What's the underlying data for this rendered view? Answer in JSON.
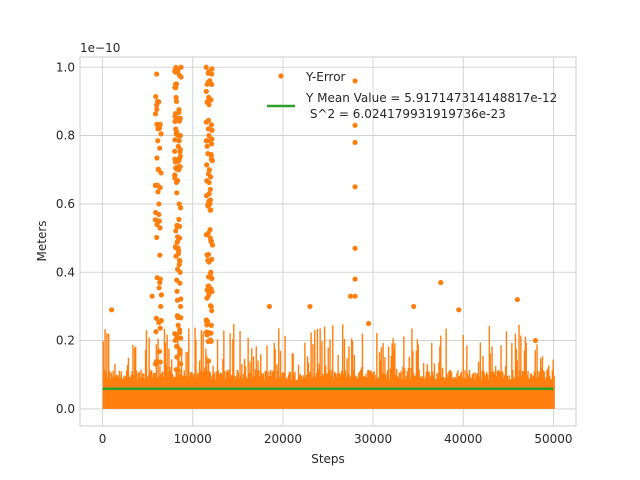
{
  "chart_data": {
    "type": "scatter",
    "xlabel": "Steps",
    "ylabel": "Meters",
    "y_scale_label": "1e−10",
    "xlim": [
      -2500,
      52500
    ],
    "ylim": [
      -0.05,
      1.03
    ],
    "y_unit_scale": 1e-10,
    "x_ticks": [
      0,
      10000,
      20000,
      30000,
      40000,
      50000
    ],
    "x_tick_labels": [
      "0",
      "10000",
      "20000",
      "30000",
      "40000",
      "50000"
    ],
    "y_ticks": [
      0.0,
      0.2,
      0.4,
      0.6,
      0.8,
      1.0
    ],
    "y_tick_labels": [
      "0.0",
      "0.2",
      "0.4",
      "0.6",
      "0.8",
      "1.0"
    ],
    "grid": true,
    "legend_position": "top-right",
    "colors": {
      "error": "#ff7f0e",
      "mean": "#2ca02c",
      "grid": "#cccccc"
    },
    "series": [
      {
        "name": "Y-Error",
        "kind": "scatter",
        "approximate_points": [
          [
            6000,
            0.98
          ],
          [
            6100,
            0.9
          ],
          [
            6150,
            0.82
          ],
          [
            6200,
            0.7
          ],
          [
            6250,
            0.6
          ],
          [
            6300,
            0.55
          ],
          [
            6350,
            0.45
          ],
          [
            6400,
            0.38
          ],
          [
            6450,
            0.3
          ],
          [
            8000,
            0.99
          ],
          [
            8100,
            0.95
          ],
          [
            8200,
            0.9
          ],
          [
            8300,
            0.85
          ],
          [
            8400,
            0.8
          ],
          [
            8450,
            0.7
          ],
          [
            8500,
            0.6
          ],
          [
            8550,
            0.5
          ],
          [
            8600,
            0.4
          ],
          [
            8650,
            0.3
          ],
          [
            8700,
            1.0
          ],
          [
            11500,
            1.0
          ],
          [
            11600,
            0.95
          ],
          [
            11700,
            0.9
          ],
          [
            11800,
            0.8
          ],
          [
            11850,
            0.7
          ],
          [
            11900,
            0.6
          ],
          [
            11950,
            0.5
          ],
          [
            12000,
            0.4
          ],
          [
            12050,
            0.3
          ],
          [
            12100,
            0.98
          ],
          [
            28000,
            0.96
          ],
          [
            28000,
            0.83
          ],
          [
            28000,
            0.78
          ],
          [
            28000,
            0.65
          ],
          [
            28000,
            0.47
          ],
          [
            28000,
            0.38
          ],
          [
            28000,
            0.33
          ],
          [
            1000,
            0.29
          ],
          [
            5500,
            0.33
          ],
          [
            18500,
            0.3
          ],
          [
            23000,
            0.3
          ],
          [
            27500,
            0.33
          ],
          [
            29500,
            0.25
          ],
          [
            34500,
            0.3
          ],
          [
            37500,
            0.37
          ],
          [
            39500,
            0.29
          ],
          [
            46000,
            0.32
          ],
          [
            48000,
            0.2
          ]
        ]
      },
      {
        "name": "Y Mean Value = 5.917147314148817e-12\n S^2 = 6.024179931919736e-23",
        "kind": "line",
        "x": [
          0,
          50000
        ],
        "y": [
          0.0592,
          0.0592
        ]
      }
    ]
  },
  "legend": {
    "entry_1": "Y-Error",
    "entry_2_line1": "Y Mean Value = 5.917147314148817e-12",
    "entry_2_line2": " S^2 = 6.024179931919736e-23"
  }
}
